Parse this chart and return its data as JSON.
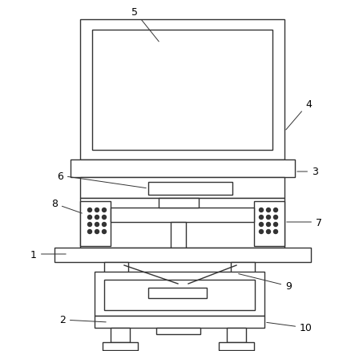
{
  "bg_color": "#ffffff",
  "line_color": "#333333",
  "line_width": 1.0,
  "fig_width": 4.43,
  "fig_height": 4.39,
  "label_fontsize": 9
}
